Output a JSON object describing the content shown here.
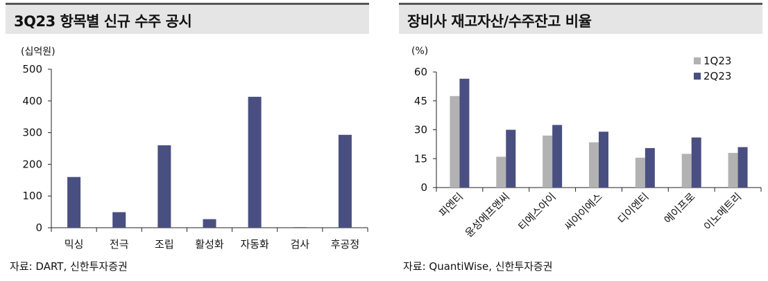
{
  "chart_data": [
    {
      "type": "bar",
      "title": "3Q23 항목별 신규 수주 공시",
      "unit_label": "(십억원)",
      "categories": [
        "믹싱",
        "전극",
        "조립",
        "활성화",
        "자동화",
        "검사",
        "후공정"
      ],
      "values": [
        160,
        49,
        260,
        27,
        413,
        0,
        293
      ],
      "ylim": [
        0,
        500
      ],
      "yticks": [
        0,
        100,
        200,
        300,
        400,
        500
      ],
      "colors": [
        "#4a4f82"
      ],
      "legend": "none",
      "grid": false,
      "source": "자료: DART, 신한투자증권"
    },
    {
      "type": "bar",
      "title": "장비사 재고자산/수주잔고 비율",
      "unit_label": "(%)",
      "categories": [
        "피엔티",
        "윤성에프앤씨",
        "티에스아이",
        "씨아이에스",
        "디이엔티",
        "에이프로",
        "이노메트리"
      ],
      "series": [
        {
          "name": "1Q23",
          "values": [
            47.5,
            16,
            27,
            23.5,
            15.5,
            17.5,
            18
          ],
          "color": "#b2b2b2"
        },
        {
          "name": "2Q23",
          "values": [
            56.5,
            30,
            32.5,
            29,
            20.5,
            26,
            21
          ],
          "color": "#4a4f82"
        }
      ],
      "ylim": [
        0,
        60
      ],
      "yticks": [
        0,
        15,
        30,
        45,
        60
      ],
      "legend": "top-right",
      "grid": false,
      "source": "자료: QuantiWise, 신한투자증권"
    }
  ]
}
